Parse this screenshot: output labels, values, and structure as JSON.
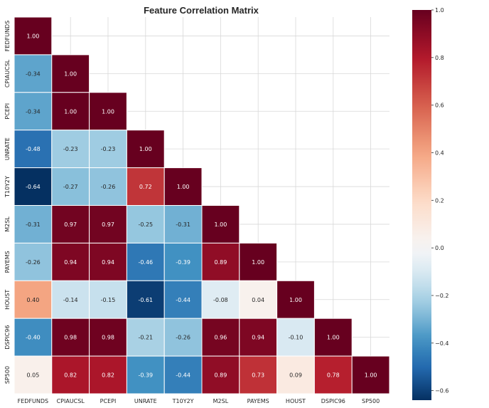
{
  "chart_data": {
    "type": "heatmap",
    "title": "Feature Correlation Matrix",
    "variables": [
      "FEDFUNDS",
      "CPIAUCSL",
      "PCEPI",
      "UNRATE",
      "T10Y2Y",
      "M2SL",
      "PAYEMS",
      "HOUST",
      "DSPIC96",
      "SP500"
    ],
    "mask": "upper triangle hidden (lower triangle incl. diagonal shown)",
    "values": [
      [
        1.0
      ],
      [
        -0.34,
        1.0
      ],
      [
        -0.34,
        1.0,
        1.0
      ],
      [
        -0.48,
        -0.23,
        -0.23,
        1.0
      ],
      [
        -0.64,
        -0.27,
        -0.26,
        0.72,
        1.0
      ],
      [
        -0.31,
        0.97,
        0.97,
        -0.25,
        -0.31,
        1.0
      ],
      [
        -0.26,
        0.94,
        0.94,
        -0.46,
        -0.39,
        0.89,
        1.0
      ],
      [
        0.4,
        -0.14,
        -0.15,
        -0.61,
        -0.44,
        -0.08,
        0.04,
        1.0
      ],
      [
        -0.4,
        0.98,
        0.98,
        -0.21,
        -0.26,
        0.96,
        0.94,
        -0.1,
        1.0
      ],
      [
        0.05,
        0.82,
        0.82,
        -0.39,
        -0.44,
        0.89,
        0.73,
        0.09,
        0.78,
        1.0
      ]
    ],
    "colormap": "RdBu_r",
    "vmin": -0.64,
    "vmax": 1.0,
    "colorbar": {
      "ticks": [
        "1.0",
        "0.8",
        "0.6",
        "0.4",
        "0.2",
        "0.0",
        "−0.2",
        "−0.4",
        "−0.6"
      ],
      "tick_values": [
        1.0,
        0.8,
        0.6,
        0.4,
        0.2,
        0.0,
        -0.2,
        -0.4,
        -0.6
      ],
      "placement": "right"
    },
    "grid": true,
    "annotations": true,
    "number_format": "2 decimals"
  }
}
